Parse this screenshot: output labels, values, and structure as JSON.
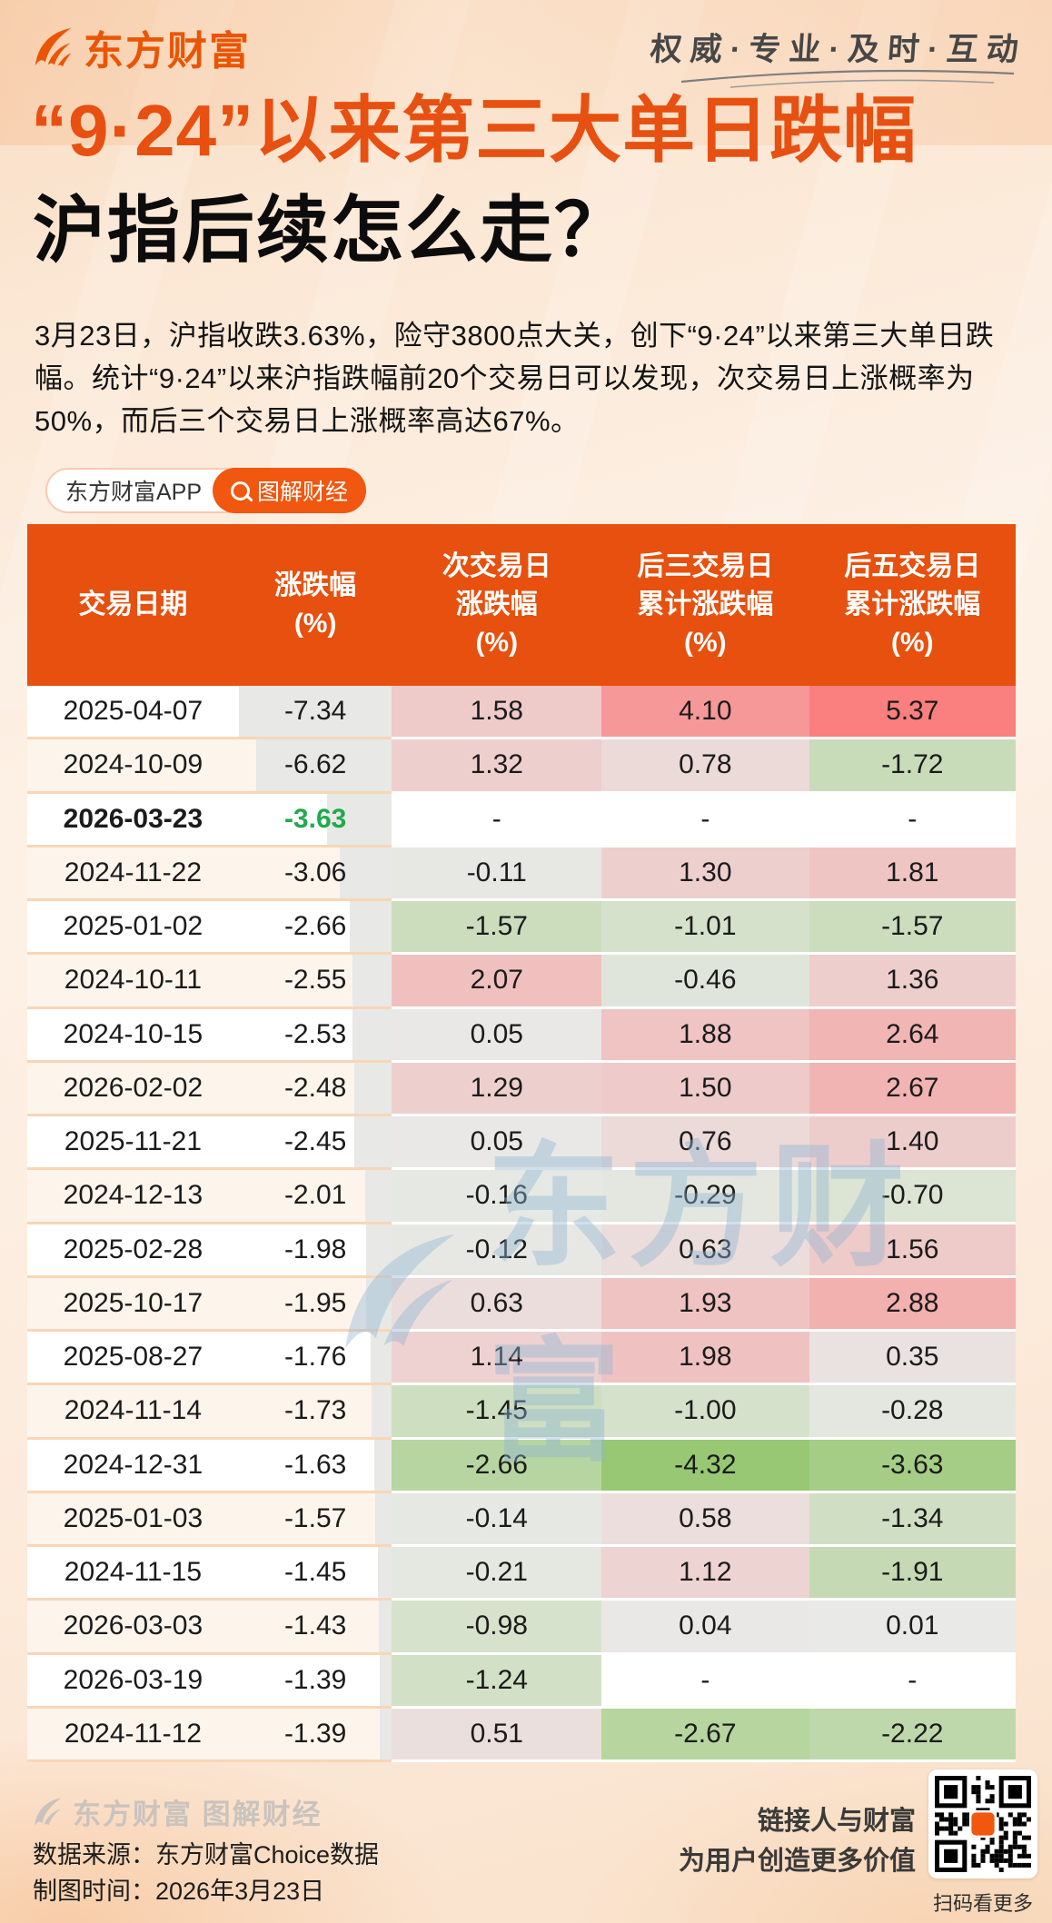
{
  "brand": {
    "logo_text": "东方财富",
    "slogan": "权威·专业·及时·互动"
  },
  "title": {
    "line1": "“9·24”以来第三大单日跌幅",
    "line2": "沪指后续怎么走？"
  },
  "intro": "3月23日，沪指收跌3.63%，险守3800点大关，创下“9·24”以来第三大单日跌幅。统计“9·24”以来沪指跌幅前20个交易日可以发现，次交易日上涨概率为50%，而后三个交易日上涨概率高达67%。",
  "badge": {
    "app_label": "东方财富APP",
    "tag_label": "图解财经",
    "search_icon": "magnifier-icon"
  },
  "watermark_text": "东方财富",
  "chart_data": {
    "type": "table",
    "columns": [
      "交易日期",
      "涨跌幅\n(%)",
      "次交易日\n涨跌幅\n(%)",
      "后三交易日\n累计涨跌幅\n(%)",
      "后五交易日\n累计涨跌幅\n(%)"
    ],
    "rows": [
      [
        "2025-04-07",
        -7.34,
        1.58,
        4.1,
        5.37
      ],
      [
        "2024-10-09",
        -6.62,
        1.32,
        0.78,
        -1.72
      ],
      [
        "2026-03-23",
        -3.63,
        null,
        null,
        null
      ],
      [
        "2024-11-22",
        -3.06,
        -0.11,
        1.3,
        1.81
      ],
      [
        "2025-01-02",
        -2.66,
        -1.57,
        -1.01,
        -1.57
      ],
      [
        "2024-10-11",
        -2.55,
        2.07,
        -0.46,
        1.36
      ],
      [
        "2024-10-15",
        -2.53,
        0.05,
        1.88,
        2.64
      ],
      [
        "2026-02-02",
        -2.48,
        1.29,
        1.5,
        2.67
      ],
      [
        "2025-11-21",
        -2.45,
        0.05,
        0.76,
        1.4
      ],
      [
        "2024-12-13",
        -2.01,
        -0.16,
        -0.29,
        -0.7
      ],
      [
        "2025-02-28",
        -1.98,
        -0.12,
        0.63,
        1.56
      ],
      [
        "2025-10-17",
        -1.95,
        0.63,
        1.93,
        2.88
      ],
      [
        "2025-08-27",
        -1.76,
        1.14,
        1.98,
        0.35
      ],
      [
        "2024-11-14",
        -1.73,
        -1.45,
        -1.0,
        -0.28
      ],
      [
        "2024-12-31",
        -1.63,
        -2.66,
        -4.32,
        -3.63
      ],
      [
        "2025-01-03",
        -1.57,
        -0.14,
        0.58,
        -1.34
      ],
      [
        "2024-11-15",
        -1.45,
        -0.21,
        1.12,
        -1.91
      ],
      [
        "2026-03-03",
        -1.43,
        -0.98,
        0.04,
        0.01
      ],
      [
        "2026-03-19",
        -1.39,
        -1.24,
        null,
        null
      ],
      [
        "2024-11-12",
        -1.39,
        0.51,
        -2.67,
        -2.22
      ]
    ],
    "highlight_row_index": 2,
    "empty_placeholder": "-",
    "heatmap": {
      "positive_max_color": "#FA7F7F",
      "negative_max_color": "#98C873",
      "neutral_color": "#E9E9E7",
      "positive_max_value": 5.37,
      "negative_max_value": -4.32
    },
    "databar": {
      "color": "#E8E8E6",
      "min_abs": 1.39,
      "max_abs": 7.34
    }
  },
  "theme": {
    "accent": "#E7500E",
    "highlight_green": "#21AA4D",
    "row_alt_bg": "#FDF4EC",
    "row_bg": "#FFFFFF",
    "separator_peach": "#F8D6B6"
  },
  "footer": {
    "logo_text": "东方财富 图解财经",
    "source": "数据来源：东方财富Choice数据",
    "made": "制图时间：2026年3月23日",
    "slogan_line1": "链接人与财富",
    "slogan_line2": "为用户创造更多价值",
    "qr_caption": "扫码看更多"
  }
}
